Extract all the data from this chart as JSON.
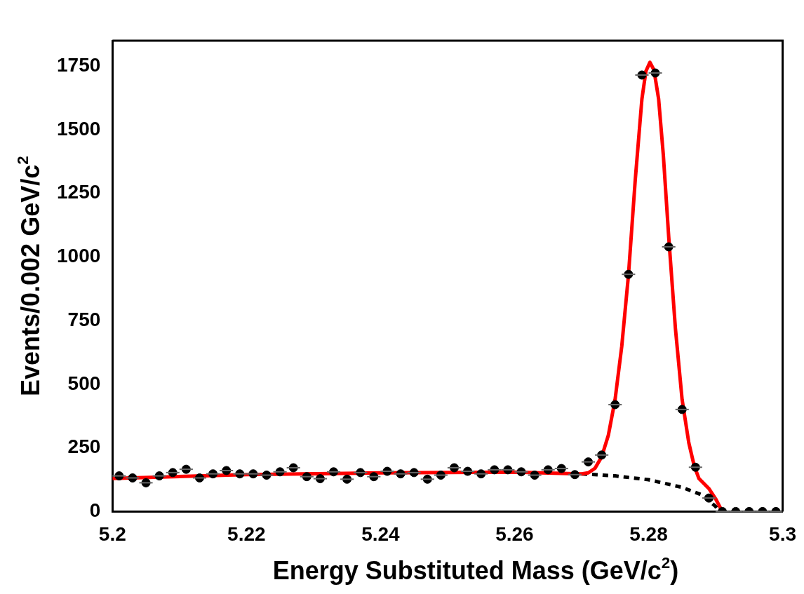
{
  "chart_data": {
    "type": "scatter",
    "xlabel": "Energy Substituted Mass (GeV/c$^{2}$)",
    "ylabel": "Events/0.002 GeV/c$^{2}$",
    "xlim": [
      5.2,
      5.3
    ],
    "xticks": [
      5.2,
      5.22,
      5.24,
      5.26,
      5.28,
      5.3
    ],
    "ylim": [
      0,
      1850
    ],
    "yticks": [
      0,
      250,
      500,
      750,
      1000,
      1250,
      1500,
      1750
    ],
    "grid": false,
    "legend": false,
    "series": [
      {
        "type": "scatter",
        "color": "#000000",
        "marker": "circle",
        "x": [
          5.201,
          5.203,
          5.205,
          5.207,
          5.209,
          5.211,
          5.213,
          5.215,
          5.217,
          5.219,
          5.221,
          5.223,
          5.225,
          5.227,
          5.229,
          5.231,
          5.233,
          5.235,
          5.237,
          5.239,
          5.241,
          5.243,
          5.245,
          5.247,
          5.249,
          5.251,
          5.253,
          5.255,
          5.257,
          5.259,
          5.261,
          5.263,
          5.265,
          5.267,
          5.269,
          5.271,
          5.273,
          5.275,
          5.277,
          5.279,
          5.281,
          5.283,
          5.285,
          5.287,
          5.289,
          5.291,
          5.293,
          5.295,
          5.297,
          5.299
        ],
        "values": [
          140,
          132,
          113,
          140,
          153,
          166,
          132,
          148,
          161,
          148,
          148,
          143,
          156,
          172,
          137,
          129,
          156,
          127,
          153,
          137,
          158,
          148,
          153,
          127,
          143,
          172,
          158,
          148,
          164,
          164,
          156,
          143,
          164,
          169,
          145,
          195,
          222,
          420,
          932,
          1715,
          1723,
          1040,
          401,
          174,
          53,
          0,
          0,
          0,
          0,
          0
        ],
        "xerrors": [
          0.001,
          0.001,
          0.001,
          0.001,
          0.001,
          0.001,
          0.001,
          0.001,
          0.001,
          0.001,
          0.001,
          0.001,
          0.001,
          0.001,
          0.001,
          0.001,
          0.001,
          0.001,
          0.001,
          0.001,
          0.001,
          0.001,
          0.001,
          0.001,
          0.001,
          0.001,
          0.001,
          0.001,
          0.001,
          0.001,
          0.001,
          0.001,
          0.001,
          0.001,
          0.001,
          0.001,
          0.001,
          0.001,
          0.001,
          0.001,
          0.001,
          0.001,
          0.001,
          0.001,
          0.001,
          0.001,
          0.001,
          0.001,
          0.001,
          0.001
        ]
      },
      {
        "type": "line",
        "color": "#ff0000",
        "marker": "none",
        "line_style": "solid",
        "x": [
          5.2,
          5.22,
          5.24,
          5.26,
          5.27,
          5.271,
          5.272,
          5.273,
          5.274,
          5.275,
          5.276,
          5.277,
          5.278,
          5.279,
          5.2796,
          5.2802,
          5.2808,
          5.2815,
          5.2822,
          5.283,
          5.284,
          5.285,
          5.286,
          5.2868,
          5.2875,
          5.289,
          5.29,
          5.291
        ],
        "values": [
          130,
          145,
          152,
          155,
          148,
          152,
          170,
          215,
          300,
          440,
          650,
          930,
          1300,
          1620,
          1730,
          1765,
          1735,
          1620,
          1400,
          1080,
          720,
          440,
          270,
          180,
          130,
          90,
          50,
          0
        ]
      },
      {
        "type": "line",
        "color": "#000000",
        "marker": "none",
        "line_style": "dashed",
        "x": [
          5.27,
          5.275,
          5.28,
          5.285,
          5.288,
          5.29,
          5.2905
        ],
        "values": [
          148,
          140,
          125,
          95,
          65,
          20,
          0
        ]
      }
    ]
  }
}
